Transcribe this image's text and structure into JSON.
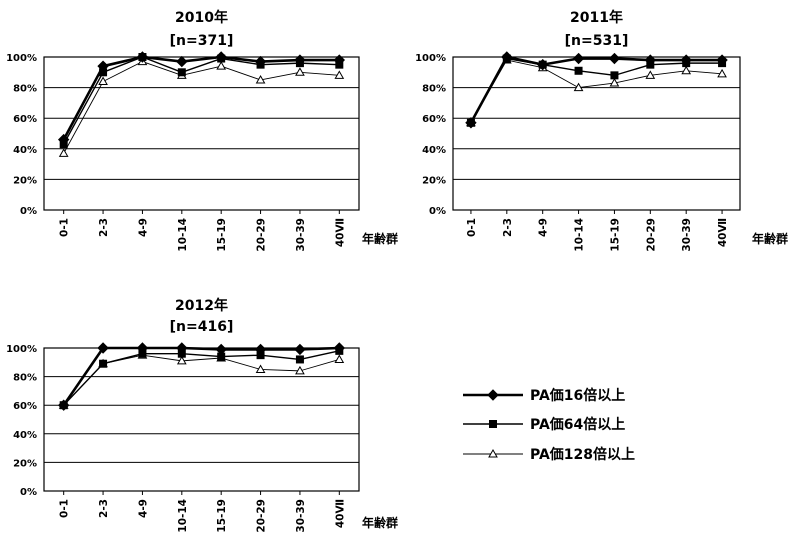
{
  "chart_data": [
    {
      "type": "line",
      "title": "2010年",
      "subtitle": "[n=371]",
      "categories": [
        "0-1",
        "2-3",
        "4-9",
        "10-14",
        "15-19",
        "20-29",
        "30-39",
        "40Ⅶ"
      ],
      "xlabel": "年齢群",
      "ylabel": "",
      "ylim": [
        0,
        100
      ],
      "y_ticks": [
        "0%",
        "20%",
        "40%",
        "60%",
        "80%",
        "100%"
      ],
      "grid": true,
      "series": [
        {
          "name": "PA価16倍以上",
          "values": [
            46,
            94,
            100,
            97,
            100,
            97,
            98,
            98
          ]
        },
        {
          "name": "PA価64倍以上",
          "values": [
            43,
            90,
            100,
            90,
            99,
            95,
            96,
            95
          ]
        },
        {
          "name": "PA価128倍以上",
          "values": [
            37,
            84,
            97,
            88,
            94,
            85,
            90,
            88
          ]
        }
      ]
    },
    {
      "type": "line",
      "title": "2011年",
      "subtitle": "[n=531]",
      "categories": [
        "0-1",
        "2-3",
        "4-9",
        "10-14",
        "15-19",
        "20-29",
        "30-39",
        "40Ⅶ"
      ],
      "xlabel": "年齢群",
      "ylabel": "",
      "ylim": [
        0,
        100
      ],
      "y_ticks": [
        "0%",
        "20%",
        "40%",
        "60%",
        "80%",
        "100%"
      ],
      "grid": true,
      "series": [
        {
          "name": "PA価16倍以上",
          "values": [
            57,
            100,
            95,
            99,
            99,
            98,
            98,
            98
          ]
        },
        {
          "name": "PA価64倍以上",
          "values": [
            57,
            99,
            95,
            91,
            88,
            95,
            96,
            96
          ]
        },
        {
          "name": "PA価128倍以上",
          "values": [
            57,
            98,
            93,
            80,
            83,
            88,
            91,
            89
          ]
        }
      ]
    },
    {
      "type": "line",
      "title": "2012年",
      "subtitle": "[n=416]",
      "categories": [
        "0-1",
        "2-3",
        "4-9",
        "10-14",
        "15-19",
        "20-29",
        "30-39",
        "40Ⅶ"
      ],
      "xlabel": "年齢群",
      "ylabel": "",
      "ylim": [
        0,
        100
      ],
      "y_ticks": [
        "0%",
        "20%",
        "40%",
        "60%",
        "80%",
        "100%"
      ],
      "grid": true,
      "series": [
        {
          "name": "PA価16倍以上",
          "values": [
            60,
            100,
            100,
            100,
            99,
            99,
            99,
            100
          ]
        },
        {
          "name": "PA価64倍以上",
          "values": [
            60,
            89,
            96,
            96,
            94,
            95,
            92,
            98
          ]
        },
        {
          "name": "PA価128倍以上",
          "values": [
            60,
            89,
            95,
            91,
            93,
            85,
            84,
            92
          ]
        }
      ]
    }
  ],
  "legend": {
    "placement": "bottom-right",
    "items": [
      {
        "label": "PA価16倍以上",
        "marker": "diamond-filled"
      },
      {
        "label": "PA価64倍以上",
        "marker": "square-filled"
      },
      {
        "label": "PA価128倍以上",
        "marker": "triangle-open"
      }
    ]
  },
  "colors": {
    "line": "#000000",
    "grid": "#000000",
    "plot_background": "#ffffff"
  }
}
